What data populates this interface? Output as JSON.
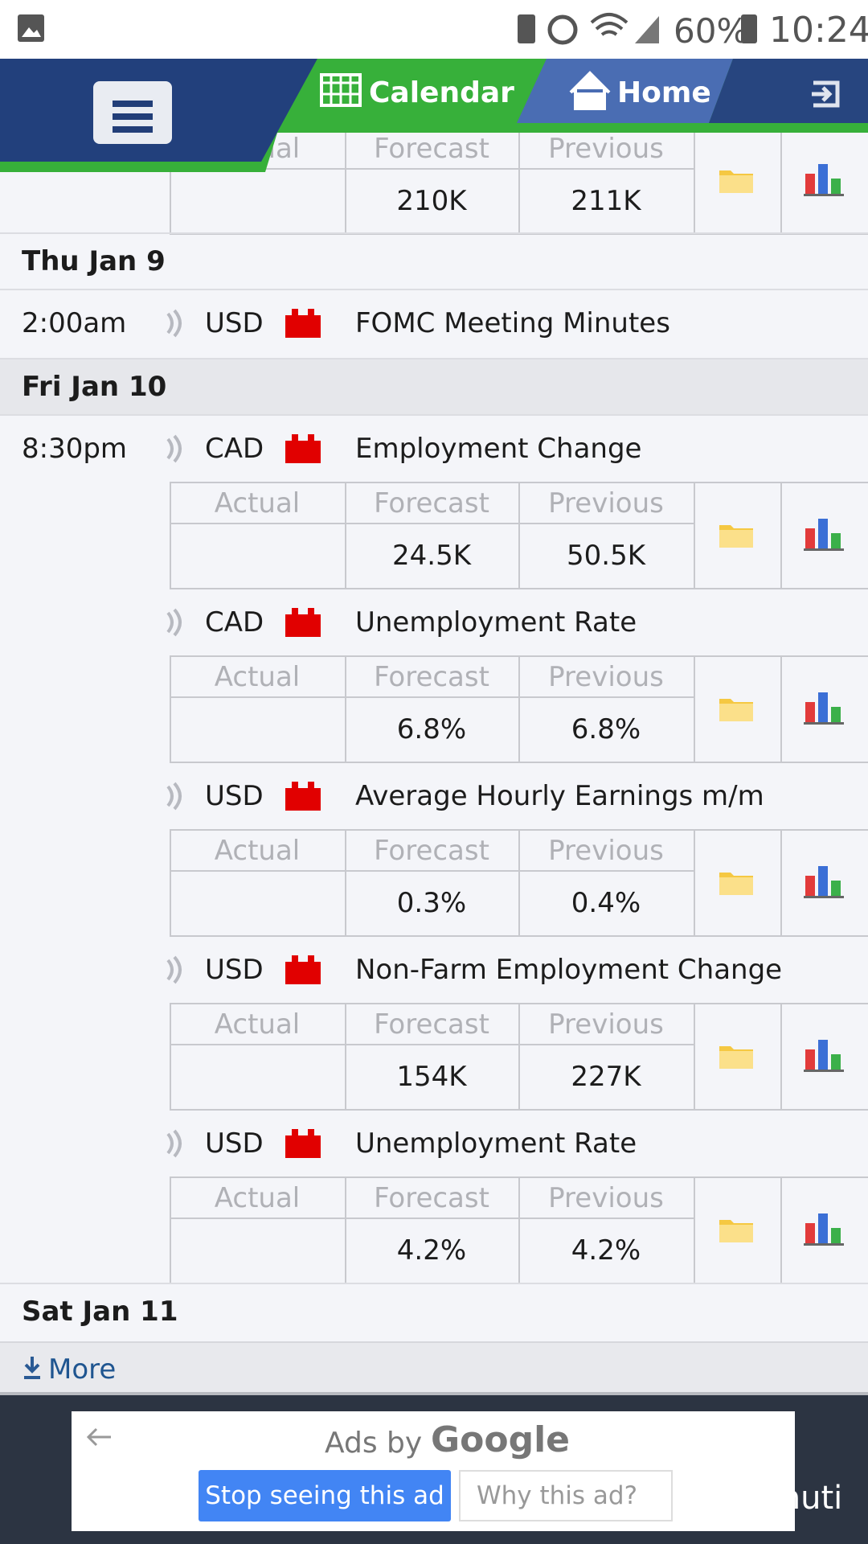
{
  "status_bar": {
    "battery": "60%",
    "time": "10:24"
  },
  "nav": {
    "calendar": "Calendar",
    "home": "Home"
  },
  "columns": [
    "Actual",
    "Forecast",
    "Previous"
  ],
  "top_event": {
    "forecast": "210K",
    "previous": "211K"
  },
  "days": [
    {
      "date": "Thu Jan 9",
      "events": [
        {
          "time": "2:00am",
          "currency": "USD",
          "title": "FOMC Meeting Minutes"
        }
      ]
    },
    {
      "date": "Fri Jan 10",
      "events": [
        {
          "time": "8:30pm",
          "currency": "CAD",
          "title": "Employment Change",
          "forecast": "24.5K",
          "previous": "50.5K"
        },
        {
          "currency": "CAD",
          "title": "Unemployment Rate",
          "forecast": "6.8%",
          "previous": "6.8%"
        },
        {
          "currency": "USD",
          "title": "Average Hourly Earnings m/m",
          "forecast": "0.3%",
          "previous": "0.4%"
        },
        {
          "currency": "USD",
          "title": "Non-Farm Employment Change",
          "forecast": "154K",
          "previous": "227K"
        },
        {
          "currency": "USD",
          "title": "Unemployment Rate",
          "forecast": "4.2%",
          "previous": "4.2%"
        }
      ]
    },
    {
      "date": "Sat Jan 11"
    }
  ],
  "more": "More",
  "ad": {
    "prefix": "Ads by",
    "brand": "Google",
    "stop": "Stop seeing this ad",
    "why": "Why this ad?"
  },
  "watermark": "@Lahuti"
}
